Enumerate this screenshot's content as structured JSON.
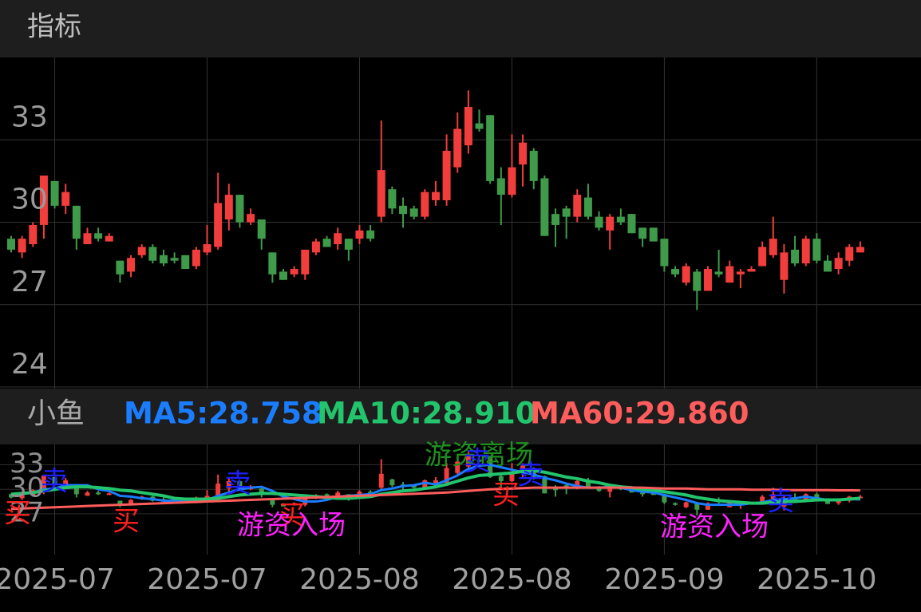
{
  "header": {
    "title": "指标"
  },
  "chart_data": [
    {
      "type": "candlestick",
      "categories": [
        null,
        null,
        null,
        null,
        "2025-07",
        null,
        null,
        null,
        null,
        null,
        null,
        null,
        null,
        null,
        null,
        null,
        null,
        null,
        "2025-07",
        null,
        null,
        null,
        null,
        null,
        null,
        null,
        null,
        null,
        null,
        null,
        null,
        null,
        "2025-08",
        null,
        null,
        null,
        null,
        null,
        null,
        null,
        null,
        null,
        null,
        null,
        null,
        null,
        "2025-08",
        null,
        null,
        null,
        null,
        null,
        null,
        null,
        null,
        null,
        null,
        null,
        null,
        null,
        "2025-09",
        null,
        null,
        null,
        null,
        null,
        null,
        null,
        null,
        null,
        null,
        null,
        null,
        null,
        "2025-10",
        null,
        null,
        null,
        null
      ],
      "open": [
        29.4,
        28.9,
        29.2,
        29.9,
        31.5,
        30.6,
        30.6,
        29.2,
        29.6,
        29.3,
        28.6,
        28.2,
        28.8,
        29.1,
        28.8,
        28.7,
        28.8,
        28.4,
        28.9,
        29.1,
        30.1,
        31.0,
        30.0,
        30.1,
        28.9,
        28.2,
        28.1,
        28.1,
        28.9,
        29.4,
        29.2,
        29.4,
        29.4,
        29.7,
        30.2,
        31.2,
        30.6,
        30.5,
        30.2,
        30.8,
        30.8,
        32.0,
        32.8,
        33.6,
        33.9,
        31.6,
        31.0,
        32.1,
        32.6,
        31.6,
        30.3,
        30.5,
        30.2,
        30.9,
        30.2,
        29.7,
        30.2,
        30.3,
        29.8,
        29.8,
        29.4,
        28.3,
        27.8,
        28.2,
        27.5,
        28.2,
        27.8,
        28.1,
        28.2,
        28.4,
        28.8,
        27.9,
        29.0,
        28.5,
        29.4,
        28.6,
        28.3,
        28.6,
        28.9
      ],
      "high": [
        29.5,
        29.5,
        30.0,
        31.7,
        31.5,
        31.4,
        30.6,
        29.8,
        29.8,
        29.6,
        28.6,
        28.8,
        29.2,
        29.2,
        29.0,
        28.9,
        28.8,
        29.1,
        29.9,
        31.8,
        31.4,
        31.0,
        30.5,
        30.1,
        28.9,
        28.3,
        28.4,
        29.0,
        29.4,
        29.5,
        29.8,
        29.4,
        29.9,
        29.9,
        33.7,
        31.3,
        30.9,
        30.6,
        31.2,
        31.5,
        33.2,
        34.0,
        34.8,
        34.1,
        33.9,
        32.0,
        33.2,
        33.2,
        32.7,
        31.7,
        30.5,
        30.6,
        31.2,
        31.4,
        30.4,
        30.3,
        30.5,
        30.3,
        29.8,
        29.8,
        29.4,
        28.4,
        28.5,
        28.3,
        28.4,
        29.0,
        28.6,
        28.3,
        28.4,
        29.3,
        30.2,
        29.2,
        29.5,
        29.5,
        29.6,
        28.8,
        28.9,
        29.2,
        29.3
      ],
      "low": [
        28.9,
        28.7,
        29.1,
        29.4,
        30.5,
        30.3,
        29.0,
        29.2,
        29.3,
        29.3,
        27.8,
        28.0,
        28.7,
        28.5,
        28.4,
        28.5,
        28.3,
        28.3,
        28.8,
        29.0,
        29.7,
        29.8,
        29.9,
        29.0,
        27.8,
        27.9,
        28.0,
        27.9,
        28.8,
        29.1,
        29.0,
        28.6,
        29.2,
        29.3,
        30.0,
        30.3,
        29.8,
        30.1,
        30.1,
        30.6,
        30.6,
        31.8,
        32.5,
        33.3,
        31.4,
        29.9,
        30.9,
        31.3,
        31.2,
        29.5,
        29.1,
        29.4,
        30.0,
        30.1,
        29.7,
        29.0,
        29.9,
        29.6,
        29.1,
        29.3,
        28.2,
        28.0,
        27.7,
        26.8,
        27.5,
        28.0,
        27.8,
        27.6,
        28.2,
        28.4,
        28.7,
        27.4,
        28.4,
        28.4,
        28.5,
        28.2,
        28.1,
        28.4,
        28.9
      ],
      "close": [
        29.0,
        29.4,
        29.9,
        31.7,
        30.6,
        31.1,
        29.4,
        29.6,
        29.4,
        29.5,
        28.1,
        28.7,
        29.1,
        28.6,
        28.5,
        28.6,
        28.3,
        29.0,
        29.2,
        30.7,
        31.0,
        30.0,
        30.3,
        29.4,
        28.1,
        27.9,
        28.3,
        29.0,
        29.3,
        29.1,
        29.6,
        29.0,
        29.7,
        29.4,
        31.9,
        30.5,
        30.3,
        30.2,
        31.1,
        31.1,
        32.6,
        33.4,
        34.2,
        33.4,
        31.5,
        31.0,
        32.0,
        32.9,
        31.5,
        29.5,
        29.9,
        30.2,
        31.0,
        30.2,
        29.8,
        30.2,
        30.0,
        29.6,
        29.4,
        29.3,
        28.4,
        28.1,
        28.4,
        27.5,
        28.3,
        28.1,
        28.4,
        28.2,
        28.3,
        29.1,
        29.4,
        28.9,
        28.5,
        29.4,
        28.6,
        28.2,
        28.7,
        29.1,
        29.1
      ],
      "up_color": "#f23d3d",
      "down_color": "#3f9b4a",
      "ylim": [
        24,
        36
      ],
      "yticks": [
        24,
        27,
        30,
        33
      ],
      "grid": true
    },
    {
      "type": "indicator",
      "title": "小鱼",
      "series": [
        {
          "name": "MA5:28.758",
          "color": "#1a7dff",
          "values": [
            29.3,
            29.4,
            29.6,
            30.0,
            30.1,
            30.5,
            30.5,
            30.5,
            30.0,
            29.8,
            29.2,
            29.1,
            28.9,
            28.8,
            28.6,
            28.6,
            28.6,
            28.6,
            28.7,
            29.2,
            29.6,
            30.0,
            30.2,
            30.3,
            29.8,
            29.1,
            28.8,
            28.5,
            28.5,
            28.7,
            29.1,
            29.2,
            29.3,
            29.4,
            29.9,
            30.1,
            30.4,
            30.5,
            30.8,
            30.6,
            31.1,
            31.7,
            32.5,
            32.9,
            33.0,
            32.7,
            32.4,
            32.1,
            31.8,
            31.4,
            31.1,
            30.7,
            30.4,
            30.2,
            30.2,
            30.3,
            30.2,
            29.9,
            29.7,
            29.6,
            29.3,
            29.0,
            28.7,
            28.3,
            28.1,
            28.1,
            28.1,
            28.1,
            28.3,
            28.4,
            28.7,
            28.8,
            28.9,
            29.1,
            28.9,
            28.7,
            28.7,
            28.8,
            28.758
          ]
        },
        {
          "name": "MA10:28.910",
          "color": "#22c46c",
          "values": [
            29.4,
            29.5,
            29.6,
            29.8,
            30.0,
            30.2,
            30.3,
            30.3,
            30.2,
            30.1,
            29.9,
            29.8,
            29.6,
            29.4,
            29.2,
            28.9,
            28.8,
            28.8,
            28.8,
            28.9,
            29.1,
            29.3,
            29.4,
            29.5,
            29.5,
            29.4,
            29.3,
            29.2,
            29.1,
            29.0,
            28.9,
            28.9,
            29.0,
            29.1,
            29.4,
            29.6,
            29.8,
            29.9,
            30.1,
            30.3,
            30.6,
            31.0,
            31.4,
            31.7,
            31.8,
            31.9,
            32.0,
            32.2,
            32.3,
            32.1,
            31.8,
            31.5,
            31.3,
            31.0,
            30.8,
            30.5,
            30.3,
            30.2,
            30.0,
            29.9,
            29.7,
            29.5,
            29.3,
            29.0,
            28.8,
            28.6,
            28.5,
            28.4,
            28.3,
            28.3,
            28.4,
            28.5,
            28.5,
            28.6,
            28.7,
            28.7,
            28.7,
            28.8,
            28.91
          ]
        },
        {
          "name": "MA60:29.860",
          "color": "#ff5c5c",
          "values": [
            27.6,
            27.65,
            27.7,
            27.75,
            27.8,
            27.85,
            27.9,
            27.95,
            28.0,
            28.05,
            28.1,
            28.15,
            28.2,
            28.25,
            28.3,
            28.35,
            28.4,
            28.45,
            28.5,
            28.55,
            28.6,
            28.65,
            28.7,
            28.75,
            28.8,
            28.85,
            28.9,
            28.95,
            29.0,
            29.05,
            29.1,
            29.15,
            29.2,
            29.25,
            29.3,
            29.35,
            29.4,
            29.45,
            29.5,
            29.55,
            29.6,
            29.7,
            29.8,
            29.9,
            30.0,
            30.05,
            30.1,
            30.15,
            30.2,
            30.2,
            30.2,
            30.2,
            30.2,
            30.2,
            30.2,
            30.2,
            30.2,
            30.2,
            30.2,
            30.15,
            30.1,
            30.1,
            30.1,
            30.05,
            30.0,
            30.0,
            30.0,
            30.0,
            29.95,
            29.95,
            29.95,
            29.9,
            29.9,
            29.9,
            29.9,
            29.9,
            29.88,
            29.87,
            29.86
          ]
        }
      ],
      "ylim": [
        22,
        35.5
      ],
      "yticks": [
        27,
        30,
        33
      ],
      "annotations": [
        {
          "text": "买",
          "color": "#ff2020"
        },
        {
          "text": "卖",
          "color": "#2020ff"
        },
        {
          "text": "买",
          "color": "#ff2020"
        },
        {
          "text": "卖",
          "color": "#2020ff"
        },
        {
          "text": "买",
          "color": "#ff2020"
        },
        {
          "text": "游资入场",
          "color": "#ff22ff"
        },
        {
          "text": "游资离场",
          "color": "#1f8f1f"
        },
        {
          "text": "卖",
          "color": "#2020ff"
        },
        {
          "text": "买",
          "color": "#ff2020"
        },
        {
          "text": "卖",
          "color": "#2020ff"
        },
        {
          "text": "游资入场",
          "color": "#ff22ff"
        },
        {
          "text": "卖",
          "color": "#2020ff"
        }
      ]
    }
  ]
}
